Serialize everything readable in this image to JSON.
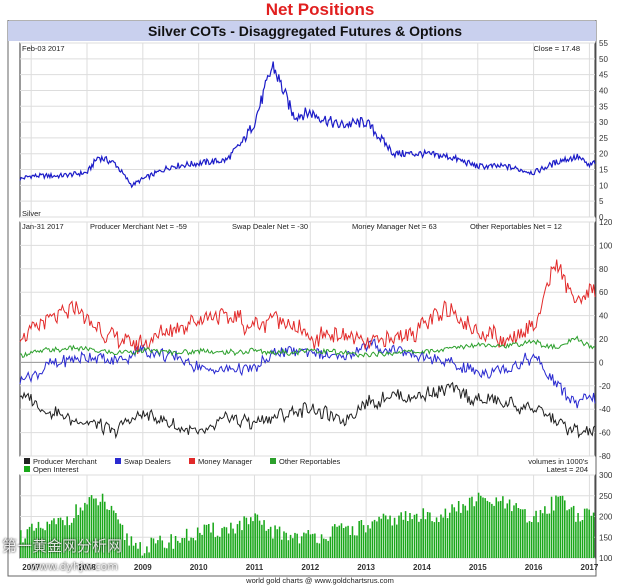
{
  "page_title": "Net Positions",
  "chart_title": "Silver COTs - Disaggregated Futures & Options",
  "footer": "world gold charts @ www.goldchartsrus.com",
  "watermark": "第一黄金网分析网",
  "watermark_url": "www.dyhjw.com",
  "colors": {
    "header_bg": "#c9d0ee",
    "panel_border": "#333333",
    "grid": "#dddddd",
    "silver": "#1c1cc8",
    "producer": "#222222",
    "swap": "#2a2ad0",
    "money": "#e22a2a",
    "other": "#2ca02c",
    "oi_bar": "#1aa81a",
    "title_red": "#e11f1f"
  },
  "chart_data": [
    {
      "panel": "price",
      "type": "line",
      "date_label": "Feb-03  2017",
      "close_label": "Close = 17.48",
      "series_label": "Silver",
      "ylim": [
        0,
        55
      ],
      "yticks": [
        "0",
        "5",
        "10",
        "15",
        "20",
        "25",
        "30",
        "35",
        "40",
        "45",
        "50",
        "55"
      ],
      "x_start": 2006.8,
      "x_end": 2017.1,
      "grid": true,
      "x_years": [
        2006.8,
        2007,
        2007.5,
        2008,
        2008.2,
        2008.5,
        2008.8,
        2009,
        2009.5,
        2010,
        2010.5,
        2010.8,
        2011,
        2011.33,
        2011.7,
        2012,
        2012.5,
        2013,
        2013.3,
        2013.5,
        2014,
        2014.5,
        2015,
        2015.5,
        2016,
        2016.5,
        2016.8,
        2017,
        2017.1
      ],
      "values": [
        12,
        13,
        13,
        14,
        19,
        17,
        10,
        12,
        16,
        17,
        18,
        24,
        30,
        48,
        32,
        33,
        29,
        30,
        24,
        20,
        20,
        19,
        16,
        16,
        14,
        18,
        19,
        16,
        17.48
      ]
    },
    {
      "panel": "net",
      "type": "line",
      "date_label": "Jan-31  2017",
      "ylim": [
        -80,
        120
      ],
      "yticks": [
        "-80",
        "-60",
        "-40",
        "-20",
        "0",
        "20",
        "40",
        "60",
        "80",
        "100",
        "120"
      ],
      "x_start": 2006.8,
      "x_end": 2017.1,
      "grid": true,
      "x_years": [
        2006.8,
        2007.2,
        2007.8,
        2008.5,
        2009,
        2009.6,
        2010,
        2010.5,
        2011,
        2011.4,
        2012,
        2012.6,
        2013,
        2013.5,
        2014,
        2014.5,
        2015,
        2015.5,
        2016,
        2016.4,
        2016.8,
        2017.1
      ],
      "series": [
        {
          "name": "Producer Merchant",
          "header": "Producer Merchant Net = -59",
          "values": [
            -25,
            -40,
            -50,
            -58,
            -42,
            -55,
            -60,
            -48,
            -52,
            -45,
            -40,
            -48,
            -35,
            -30,
            -28,
            -22,
            -32,
            -35,
            -40,
            -50,
            -60,
            -59
          ]
        },
        {
          "name": "Swap Dealers",
          "header": "Swap Dealer Net = -30",
          "values": [
            -15,
            -5,
            5,
            0,
            10,
            5,
            -5,
            -8,
            -5,
            8,
            10,
            5,
            15,
            10,
            5,
            0,
            -10,
            -5,
            5,
            -20,
            -35,
            -30
          ]
        },
        {
          "name": "Money Manager",
          "header": "Money Manager Net = 63",
          "values": [
            20,
            35,
            45,
            20,
            15,
            30,
            35,
            40,
            30,
            40,
            20,
            25,
            15,
            20,
            30,
            45,
            25,
            20,
            30,
            85,
            50,
            63
          ]
        },
        {
          "name": "Other Reportables",
          "header": "Other Reportables Net = 12",
          "values": [
            5,
            10,
            12,
            8,
            10,
            8,
            10,
            8,
            10,
            8,
            10,
            8,
            6,
            8,
            10,
            12,
            15,
            14,
            18,
            12,
            20,
            12
          ]
        }
      ],
      "legend": [
        "Producer Merchant",
        "Swap Dealers",
        "Money Manager",
        "Other Reportables"
      ],
      "units_note": "volumes in 1000's"
    },
    {
      "panel": "open_interest",
      "type": "bar",
      "label": "Open Interest",
      "latest_label": "Latest = 204",
      "ylim": [
        100,
        300
      ],
      "yticks": [
        "100",
        "150",
        "200",
        "250",
        "300"
      ],
      "x_start": 2006.8,
      "x_end": 2017.1,
      "grid": true,
      "x_years": [
        2006.8,
        2007.2,
        2007.6,
        2008,
        2008.3,
        2008.7,
        2009,
        2009.5,
        2010,
        2010.5,
        2011,
        2011.4,
        2012,
        2012.5,
        2013,
        2013.5,
        2014,
        2014.5,
        2015,
        2015.5,
        2016,
        2016.5,
        2016.8,
        2017.1
      ],
      "values": [
        155,
        170,
        190,
        230,
        240,
        150,
        125,
        140,
        160,
        170,
        190,
        160,
        150,
        165,
        175,
        195,
        200,
        210,
        240,
        230,
        190,
        250,
        200,
        204
      ]
    }
  ],
  "x_axis": {
    "labels": [
      "2007",
      "2008",
      "2009",
      "2010",
      "2011",
      "2012",
      "2013",
      "2014",
      "2015",
      "2016",
      "2017"
    ]
  }
}
